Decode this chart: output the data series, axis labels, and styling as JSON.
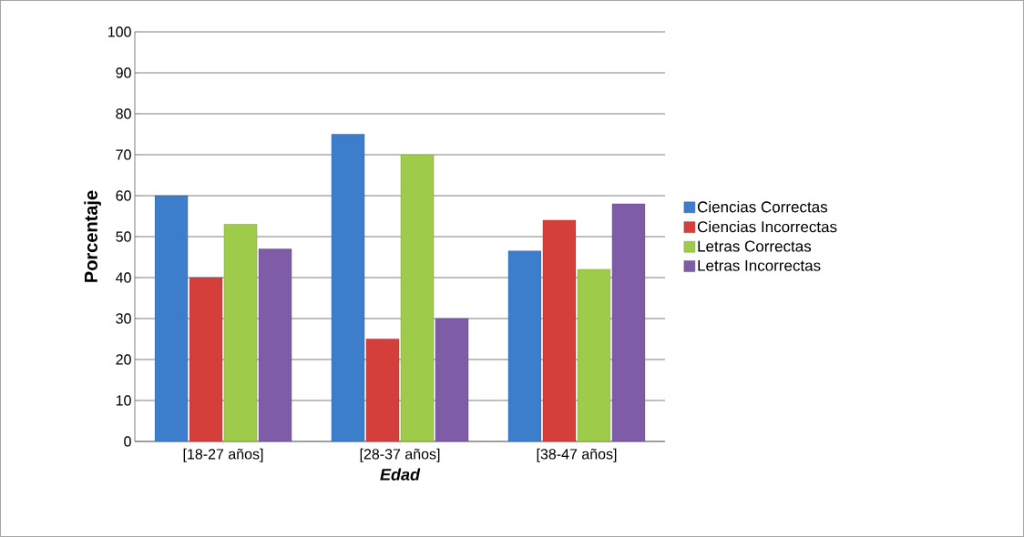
{
  "chart_data": {
    "type": "bar",
    "xlabel": "Edad",
    "ylabel": "Porcentaje",
    "categories": [
      "[18-27 años]",
      "[28-37 años]",
      "[38-47 años]"
    ],
    "series": [
      {
        "name": "Ciencias Correctas",
        "color": "#3c7dcc",
        "values": [
          60,
          75,
          46.5
        ]
      },
      {
        "name": "Ciencias Incorrectas",
        "color": "#d43f3c",
        "values": [
          40,
          25,
          54
        ]
      },
      {
        "name": "Letras Correctas",
        "color": "#9fcb4a",
        "values": [
          53,
          70,
          42
        ]
      },
      {
        "name": "Letras Incorrectas",
        "color": "#7f5ca8",
        "values": [
          47,
          30,
          58
        ]
      }
    ],
    "ylim": [
      0,
      100
    ],
    "yticks": [
      0,
      10,
      20,
      30,
      40,
      50,
      60,
      70,
      80,
      90,
      100
    ],
    "grid": "y",
    "legend": "right"
  }
}
